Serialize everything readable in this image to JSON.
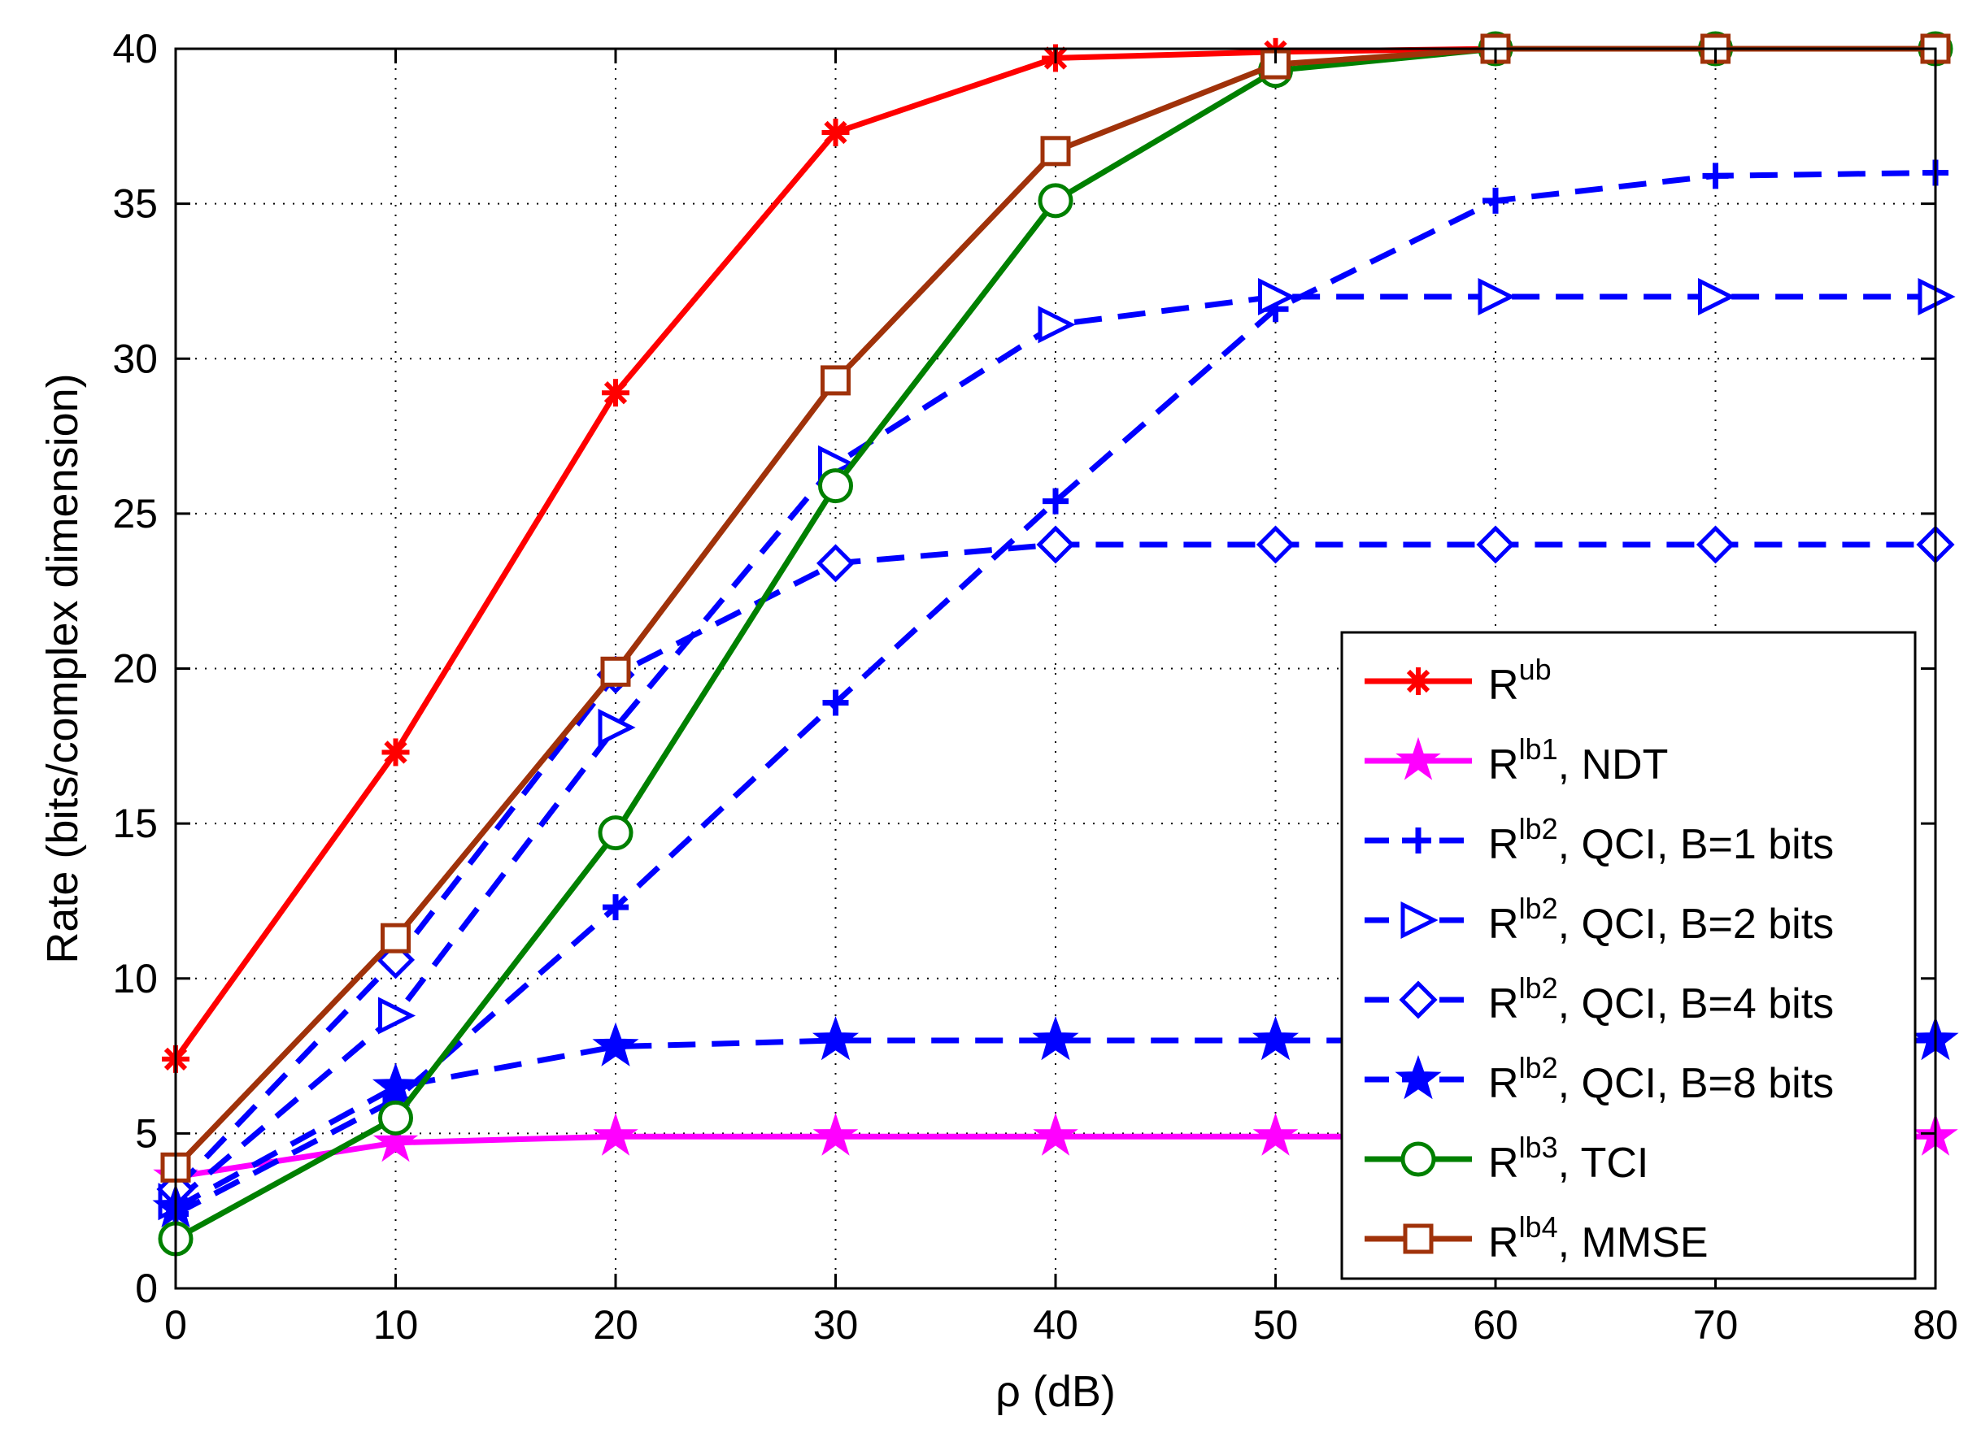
{
  "chart_data": {
    "type": "line",
    "title": "",
    "xlabel": "ρ (dB)",
    "ylabel": "Rate (bits/complex dimension)",
    "xlim": [
      0,
      80
    ],
    "ylim": [
      0,
      40
    ],
    "grid": true,
    "legend_position": "bottom-right",
    "x": [
      0,
      10,
      20,
      30,
      40,
      50,
      60,
      70,
      80
    ],
    "xticks": [
      "0",
      "10",
      "20",
      "30",
      "40",
      "50",
      "60",
      "70",
      "80"
    ],
    "yticks": [
      "0",
      "5",
      "10",
      "15",
      "20",
      "25",
      "30",
      "35",
      "40"
    ],
    "series": [
      {
        "name": "R^ub",
        "legend_base": "R",
        "legend_sup": "ub",
        "legend_rest": "",
        "color": "#ff0000",
        "dash": "solid",
        "marker": "asterisk",
        "values": [
          7.4,
          17.3,
          28.9,
          37.3,
          39.7,
          39.9,
          40,
          40,
          40
        ]
      },
      {
        "name": "R^lb1, NDT",
        "legend_base": "R",
        "legend_sup": "lb1",
        "legend_rest": ", NDT",
        "color": "#ff00ff",
        "dash": "solid",
        "marker": "star",
        "values": [
          3.6,
          4.7,
          4.9,
          4.9,
          4.9,
          4.9,
          4.9,
          4.9,
          4.9
        ]
      },
      {
        "name": "R^lb2, QCI, B=1 bits",
        "legend_base": "R",
        "legend_sup": "lb2",
        "legend_rest": ", QCI, B=1 bits",
        "color": "#0000ff",
        "dash": "dashed",
        "marker": "plus",
        "values": [
          2.4,
          6.1,
          12.3,
          18.9,
          25.4,
          31.6,
          35.1,
          35.9,
          36
        ]
      },
      {
        "name": "R^lb2, QCI, B=2 bits",
        "legend_base": "R",
        "legend_sup": "lb2",
        "legend_rest": ", QCI, B=2 bits",
        "color": "#0000ff",
        "dash": "dashed",
        "marker": "triangle-right",
        "values": [
          2.8,
          8.8,
          18.1,
          26.6,
          31.1,
          32,
          32,
          32,
          32
        ]
      },
      {
        "name": "R^lb2, QCI, B=4 bits",
        "legend_base": "R",
        "legend_sup": "lb2",
        "legend_rest": ", QCI, B=4 bits",
        "color": "#0000ff",
        "dash": "dashed",
        "marker": "diamond",
        "values": [
          3.2,
          10.6,
          19.8,
          23.4,
          24,
          24,
          24,
          24,
          24
        ]
      },
      {
        "name": "R^lb2, QCI, B=8 bits",
        "legend_base": "R",
        "legend_sup": "lb2",
        "legend_rest": ", QCI, B=8 bits",
        "color": "#0000ff",
        "dash": "dashed",
        "marker": "filled-star",
        "values": [
          2.6,
          6.5,
          7.8,
          8,
          8,
          8,
          8,
          8,
          8
        ]
      },
      {
        "name": "R^lb3, TCI",
        "legend_base": "R",
        "legend_sup": "lb3",
        "legend_rest": ", TCI",
        "color": "#008000",
        "dash": "solid",
        "marker": "circle",
        "values": [
          1.6,
          5.5,
          14.7,
          25.9,
          35.1,
          39.3,
          40,
          40,
          40
        ]
      },
      {
        "name": "R^lb4, MMSE",
        "legend_base": "R",
        "legend_sup": "lb4",
        "legend_rest": ", MMSE",
        "color": "#a0320a",
        "dash": "solid",
        "marker": "square",
        "values": [
          3.9,
          11.3,
          19.9,
          29.3,
          36.7,
          39.5,
          40,
          40,
          40
        ]
      }
    ]
  }
}
